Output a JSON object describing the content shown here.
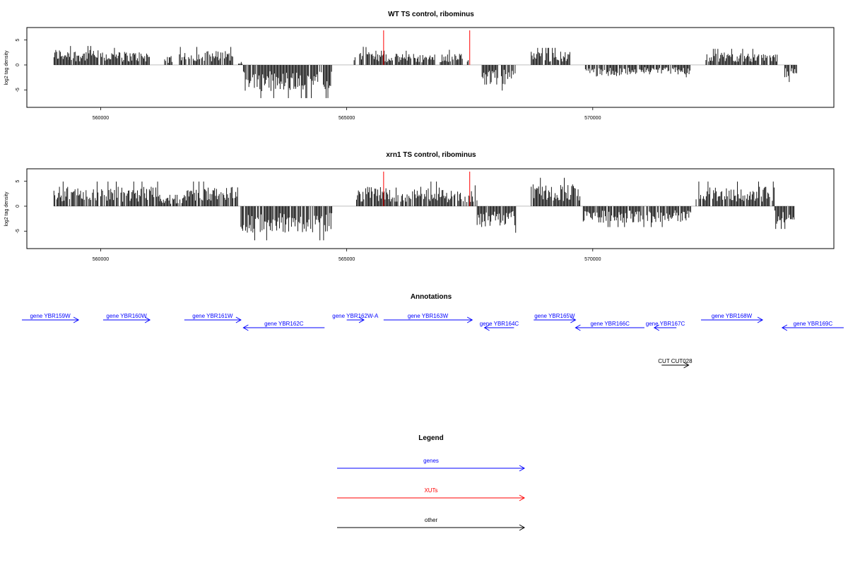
{
  "colors": {
    "gene": "#0000ff",
    "xut": "#ff0000",
    "other": "#000000",
    "bar": "#000000",
    "marker": "#ff0000"
  },
  "chart_data": [
    {
      "type": "bar",
      "title": "WT TS control, ribominus",
      "ylabel": "log2 tag density",
      "xlim": [
        558500,
        574900
      ],
      "ylim": [
        -8.5,
        7.5
      ],
      "x_ticks": [
        560000,
        565000,
        570000
      ],
      "x_tick_labels": [
        "560000",
        "565000",
        "570000"
      ],
      "y_ticks": [
        -5,
        0,
        5
      ],
      "y_tick_labels": [
        "-5",
        "0",
        "5"
      ],
      "bar_segments": [
        {
          "start": 559050,
          "end": 559350,
          "mean": 2.2
        },
        {
          "start": 559350,
          "end": 559950,
          "mean": 2.0
        },
        {
          "start": 560000,
          "end": 561000,
          "mean": 1.8
        },
        {
          "start": 561300,
          "end": 561450,
          "mean": 1.2
        },
        {
          "start": 561600,
          "end": 562700,
          "mean": 1.9
        },
        {
          "start": 562800,
          "end": 562900,
          "mean": 0.6
        },
        {
          "start": 562900,
          "end": 564700,
          "mean": -3.5
        },
        {
          "start": 565150,
          "end": 565500,
          "mean": 2.6
        },
        {
          "start": 565500,
          "end": 566800,
          "mean": 1.5
        },
        {
          "start": 566900,
          "end": 567350,
          "mean": 1.6
        },
        {
          "start": 567450,
          "end": 567500,
          "mean": 0.8
        },
        {
          "start": 567750,
          "end": 568450,
          "mean": -2.7
        },
        {
          "start": 568750,
          "end": 569550,
          "mean": 1.8
        },
        {
          "start": 569850,
          "end": 570650,
          "mean": -1.6
        },
        {
          "start": 570650,
          "end": 572000,
          "mean": -1.3
        },
        {
          "start": 572300,
          "end": 573300,
          "mean": 1.7
        },
        {
          "start": 573300,
          "end": 573750,
          "mean": 1.5
        },
        {
          "start": 573900,
          "end": 574150,
          "mean": -1.8
        }
      ],
      "markers_x": [
        565750,
        567500
      ]
    },
    {
      "type": "bar",
      "title": "xrn1 TS control, ribominus",
      "ylabel": "log2 tag density",
      "xlim": [
        558500,
        574900
      ],
      "ylim": [
        -8.5,
        7.5
      ],
      "x_ticks": [
        560000,
        565000,
        570000
      ],
      "x_tick_labels": [
        "560000",
        "565000",
        "570000"
      ],
      "y_ticks": [
        -5,
        0,
        5
      ],
      "y_tick_labels": [
        "-5",
        "0",
        "5"
      ],
      "bar_segments": [
        {
          "start": 559050,
          "end": 559950,
          "mean": 2.6
        },
        {
          "start": 560000,
          "end": 561200,
          "mean": 2.6
        },
        {
          "start": 561200,
          "end": 561700,
          "mean": 1.2
        },
        {
          "start": 561700,
          "end": 562800,
          "mean": 2.6
        },
        {
          "start": 562850,
          "end": 564700,
          "mean": -3.6
        },
        {
          "start": 565200,
          "end": 566900,
          "mean": 2.6
        },
        {
          "start": 566900,
          "end": 567650,
          "mean": 2.2
        },
        {
          "start": 567650,
          "end": 568450,
          "mean": -2.8
        },
        {
          "start": 568750,
          "end": 569750,
          "mean": 3.0
        },
        {
          "start": 569750,
          "end": 572000,
          "mean": -2.2
        },
        {
          "start": 572100,
          "end": 573700,
          "mean": 2.6
        },
        {
          "start": 573700,
          "end": 574100,
          "mean": -2.4
        }
      ],
      "markers_x": [
        565750,
        567500
      ]
    }
  ],
  "annotations": {
    "title": "Annotations",
    "features": [
      {
        "label": "gene YBR159W",
        "start": 558400,
        "end": 559550,
        "strand": "+",
        "kind": "gene"
      },
      {
        "label": "gene YBR160W",
        "start": 560050,
        "end": 561000,
        "strand": "+",
        "kind": "gene"
      },
      {
        "label": "gene YBR161W",
        "start": 561700,
        "end": 562850,
        "strand": "+",
        "kind": "gene"
      },
      {
        "label": "gene YBR162C",
        "start": 562900,
        "end": 564550,
        "strand": "-",
        "kind": "gene"
      },
      {
        "label": "gene YBR162W-A",
        "start": 565000,
        "end": 565350,
        "strand": "+",
        "kind": "gene"
      },
      {
        "label": "gene YBR163W",
        "start": 565750,
        "end": 567550,
        "strand": "+",
        "kind": "gene"
      },
      {
        "label": "gene YBR164C",
        "start": 567800,
        "end": 568400,
        "strand": "-",
        "kind": "gene"
      },
      {
        "label": "gene YBR165W",
        "start": 568800,
        "end": 569650,
        "strand": "+",
        "kind": "gene"
      },
      {
        "label": "gene YBR166C",
        "start": 569650,
        "end": 571050,
        "strand": "-",
        "kind": "gene"
      },
      {
        "label": "gene YBR167C",
        "start": 571250,
        "end": 571700,
        "strand": "-",
        "kind": "gene"
      },
      {
        "label": "gene YBR168W",
        "start": 572200,
        "end": 573450,
        "strand": "+",
        "kind": "gene"
      },
      {
        "label": "gene YBR169C",
        "start": 573850,
        "end": 575100,
        "strand": "-",
        "kind": "gene"
      },
      {
        "label": "CUT CUT028",
        "start": 571400,
        "end": 571950,
        "strand": "+",
        "kind": "other"
      }
    ]
  },
  "legend": {
    "title": "Legend",
    "items": [
      {
        "label": "genes",
        "kind": "gene"
      },
      {
        "label": "XUTs",
        "kind": "xut"
      },
      {
        "label": "other",
        "kind": "other"
      }
    ]
  }
}
